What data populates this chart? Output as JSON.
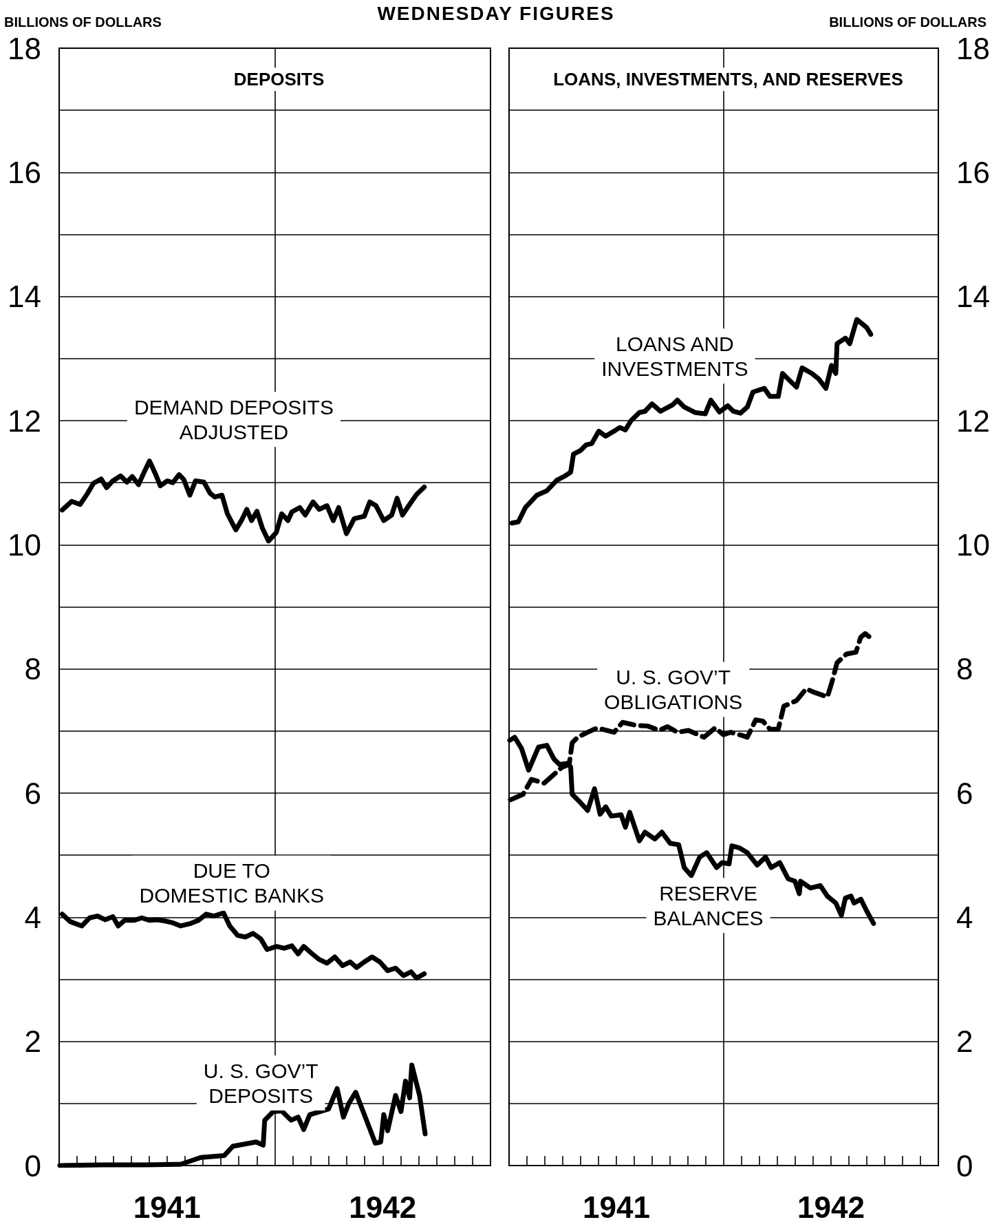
{
  "chart_data": [
    {
      "type": "line",
      "title": "DEPOSITS",
      "ylabel": "BILLIONS OF DOLLARS",
      "annotations": [
        "WEDNESDAY FIGURES"
      ],
      "xlim": [
        1941,
        1943
      ],
      "xticks": [
        {
          "value": 1941.083,
          "label": null
        },
        {
          "value": 1941.167,
          "label": null
        },
        {
          "value": 1941.25,
          "label": null
        },
        {
          "value": 1941.333,
          "label": null
        },
        {
          "value": 1941.417,
          "label": null
        },
        {
          "value": 1941.5,
          "label": "1941"
        },
        {
          "value": 1941.583,
          "label": null
        },
        {
          "value": 1941.667,
          "label": null
        },
        {
          "value": 1941.75,
          "label": null
        },
        {
          "value": 1941.833,
          "label": null
        },
        {
          "value": 1941.917,
          "label": null
        },
        {
          "value": 1942.083,
          "label": null
        },
        {
          "value": 1942.167,
          "label": null
        },
        {
          "value": 1942.25,
          "label": null
        },
        {
          "value": 1942.333,
          "label": null
        },
        {
          "value": 1942.417,
          "label": null
        },
        {
          "value": 1942.5,
          "label": "1942"
        },
        {
          "value": 1942.583,
          "label": null
        },
        {
          "value": 1942.667,
          "label": null
        },
        {
          "value": 1942.75,
          "label": null
        },
        {
          "value": 1942.833,
          "label": null
        },
        {
          "value": 1942.917,
          "label": null
        }
      ],
      "ylim": [
        0,
        18
      ],
      "yticks": [
        0,
        {
          "value": 1,
          "label": null
        },
        2,
        {
          "value": 3,
          "label": null
        },
        4,
        {
          "value": 5,
          "label": null
        },
        6,
        {
          "value": 7,
          "label": null
        },
        8,
        {
          "value": 9,
          "label": null
        },
        10,
        {
          "value": 11,
          "label": null
        },
        12,
        {
          "value": 13,
          "label": null
        },
        14,
        {
          "value": 15,
          "label": null
        },
        16,
        {
          "value": 17,
          "label": null
        },
        18
      ],
      "grid": "y",
      "legend": false,
      "marker": "none",
      "ref_lines": [
        {
          "axis": "x",
          "value": 1942,
          "label": null,
          "color": "#000000"
        }
      ],
      "series": [
        {
          "name": "DEMAND DEPOSITS ADJUSTED",
          "color": "#000000",
          "line_style": "solid",
          "x": [
            1941.014,
            1941.058,
            1941.097,
            1941.13,
            1941.159,
            1941.195,
            1941.22,
            1941.249,
            1941.285,
            1941.314,
            1941.339,
            1941.368,
            1941.394,
            1941.419,
            1941.448,
            1941.469,
            1941.502,
            1941.527,
            1941.556,
            1941.578,
            1941.606,
            1941.632,
            1941.671,
            1941.7,
            1941.722,
            1941.755,
            1941.78,
            1941.819,
            1941.845,
            1941.87,
            1941.892,
            1941.917,
            1941.942,
            1941.971,
            1942.007,
            1942.032,
            1942.061,
            1942.079,
            1942.116,
            1942.141,
            1942.177,
            1942.206,
            1942.242,
            1942.271,
            1942.296,
            1942.332,
            1942.368,
            1942.415,
            1942.44,
            1942.469,
            1942.505,
            1942.542,
            1942.567,
            1942.592,
            1942.621,
            1942.657,
            1942.693
          ],
          "values": [
            10.56,
            10.7,
            10.65,
            10.82,
            10.99,
            11.06,
            10.92,
            11.03,
            11.11,
            11.01,
            11.1,
            10.97,
            11.17,
            11.35,
            11.13,
            10.95,
            11.03,
            11.0,
            11.13,
            11.05,
            10.8,
            11.03,
            11.01,
            10.83,
            10.77,
            10.8,
            10.5,
            10.24,
            10.39,
            10.57,
            10.39,
            10.54,
            10.27,
            10.06,
            10.2,
            10.5,
            10.39,
            10.53,
            10.6,
            10.48,
            10.69,
            10.57,
            10.63,
            10.39,
            10.6,
            10.18,
            10.42,
            10.46,
            10.69,
            10.63,
            10.39,
            10.48,
            10.75,
            10.48,
            10.63,
            10.81,
            10.93
          ]
        },
        {
          "name": "DUE TO DOMESTIC BANKS",
          "color": "#000000",
          "line_style": "solid",
          "x": [
            1941.014,
            1941.051,
            1941.105,
            1941.141,
            1941.177,
            1941.213,
            1941.249,
            1941.274,
            1941.303,
            1941.347,
            1941.383,
            1941.419,
            1941.455,
            1941.491,
            1941.527,
            1941.563,
            1941.61,
            1941.646,
            1941.682,
            1941.718,
            1941.762,
            1941.791,
            1941.827,
            1941.863,
            1941.899,
            1941.935,
            1941.964,
            1942.007,
            1942.043,
            1942.079,
            1942.108,
            1942.134,
            1942.17,
            1942.206,
            1942.242,
            1942.278,
            1942.314,
            1942.35,
            1942.379,
            1942.415,
            1942.451,
            1942.487,
            1942.523,
            1942.56,
            1942.596,
            1942.632,
            1942.657,
            1942.693
          ],
          "values": [
            4.05,
            3.93,
            3.86,
            3.99,
            4.02,
            3.96,
            4.01,
            3.86,
            3.95,
            3.95,
            3.99,
            3.95,
            3.96,
            3.94,
            3.91,
            3.86,
            3.9,
            3.95,
            4.05,
            4.02,
            4.07,
            3.86,
            3.71,
            3.68,
            3.74,
            3.65,
            3.48,
            3.53,
            3.5,
            3.54,
            3.41,
            3.53,
            3.42,
            3.32,
            3.26,
            3.36,
            3.22,
            3.28,
            3.19,
            3.28,
            3.36,
            3.28,
            3.14,
            3.18,
            3.06,
            3.12,
            3.02,
            3.09
          ]
        },
        {
          "name": "U. S. GOV’T DEPOSITS",
          "color": "#000000",
          "line_style": "solid",
          "x": [
            1941.003,
            1941.2,
            1941.4,
            1941.563,
            1941.657,
            1941.765,
            1941.805,
            1941.913,
            1941.946,
            1941.953,
            1941.993,
            1942.032,
            1942.076,
            1942.108,
            1942.134,
            1942.162,
            1942.249,
            1942.289,
            1942.318,
            1942.343,
            1942.375,
            1942.466,
            1942.491,
            1942.505,
            1942.523,
            1942.56,
            1942.585,
            1942.606,
            1942.625,
            1942.635,
            1942.671,
            1942.697
          ],
          "values": [
            0.0,
            0.01,
            0.01,
            0.02,
            0.13,
            0.16,
            0.31,
            0.38,
            0.33,
            0.73,
            0.87,
            0.88,
            0.73,
            0.78,
            0.58,
            0.82,
            0.91,
            1.24,
            0.78,
            1.0,
            1.18,
            0.36,
            0.38,
            0.82,
            0.56,
            1.13,
            0.87,
            1.36,
            1.09,
            1.62,
            1.13,
            0.51
          ]
        }
      ]
    },
    {
      "type": "line",
      "title": "LOANS, INVESTMENTS, AND RESERVES",
      "ylabel": "BILLIONS OF DOLLARS",
      "xlim": [
        1941,
        1943
      ],
      "xticks": [
        {
          "value": 1941.083,
          "label": null
        },
        {
          "value": 1941.167,
          "label": null
        },
        {
          "value": 1941.25,
          "label": null
        },
        {
          "value": 1941.333,
          "label": null
        },
        {
          "value": 1941.417,
          "label": null
        },
        {
          "value": 1941.5,
          "label": "1941"
        },
        {
          "value": 1941.583,
          "label": null
        },
        {
          "value": 1941.667,
          "label": null
        },
        {
          "value": 1941.75,
          "label": null
        },
        {
          "value": 1941.833,
          "label": null
        },
        {
          "value": 1941.917,
          "label": null
        },
        {
          "value": 1942.083,
          "label": null
        },
        {
          "value": 1942.167,
          "label": null
        },
        {
          "value": 1942.25,
          "label": null
        },
        {
          "value": 1942.333,
          "label": null
        },
        {
          "value": 1942.417,
          "label": null
        },
        {
          "value": 1942.5,
          "label": "1942"
        },
        {
          "value": 1942.583,
          "label": null
        },
        {
          "value": 1942.667,
          "label": null
        },
        {
          "value": 1942.75,
          "label": null
        },
        {
          "value": 1942.833,
          "label": null
        },
        {
          "value": 1942.917,
          "label": null
        }
      ],
      "ylim": [
        0,
        18
      ],
      "yticks": [
        0,
        {
          "value": 1,
          "label": null
        },
        2,
        {
          "value": 3,
          "label": null
        },
        4,
        {
          "value": 5,
          "label": null
        },
        6,
        {
          "value": 7,
          "label": null
        },
        8,
        {
          "value": 9,
          "label": null
        },
        10,
        {
          "value": 11,
          "label": null
        },
        12,
        {
          "value": 13,
          "label": null
        },
        14,
        {
          "value": 15,
          "label": null
        },
        16,
        {
          "value": 17,
          "label": null
        },
        18
      ],
      "grid": "y",
      "legend": false,
      "marker": "none",
      "ref_lines": [
        {
          "axis": "x",
          "value": 1942,
          "label": null,
          "color": "#000000"
        }
      ],
      "series": [
        {
          "name": "LOANS AND INVESTMENTS",
          "color": "#000000",
          "line_style": "solid",
          "x": [
            1941.014,
            1941.043,
            1941.076,
            1941.13,
            1941.176,
            1941.222,
            1941.261,
            1941.287,
            1941.3,
            1941.333,
            1941.359,
            1941.385,
            1941.418,
            1941.45,
            1941.489,
            1941.516,
            1941.542,
            1941.568,
            1941.607,
            1941.633,
            1941.666,
            1941.705,
            1941.764,
            1941.784,
            1941.816,
            1941.868,
            1941.914,
            1941.94,
            1941.98,
            1942.019,
            1942.045,
            1942.078,
            1942.11,
            1942.136,
            1942.189,
            1942.215,
            1942.254,
            1942.274,
            1942.306,
            1942.339,
            1942.365,
            1942.411,
            1942.443,
            1942.476,
            1942.502,
            1942.522,
            1942.528,
            1942.567,
            1942.587,
            1942.62,
            1942.666,
            1942.685
          ],
          "values": [
            10.35,
            10.37,
            10.6,
            10.8,
            10.87,
            11.04,
            11.11,
            11.17,
            11.46,
            11.52,
            11.61,
            11.63,
            11.83,
            11.75,
            11.83,
            11.89,
            11.85,
            12.0,
            12.13,
            12.15,
            12.27,
            12.15,
            12.26,
            12.33,
            12.22,
            12.13,
            12.11,
            12.33,
            12.14,
            12.24,
            12.15,
            12.12,
            12.22,
            12.46,
            12.52,
            12.39,
            12.39,
            12.76,
            12.65,
            12.54,
            12.85,
            12.76,
            12.67,
            12.52,
            12.89,
            12.76,
            13.24,
            13.33,
            13.24,
            13.63,
            13.5,
            13.39
          ]
        },
        {
          "name": "U. S. GOV’T OBLIGATIONS",
          "color": "#000000",
          "line_style": "dashed",
          "x": [
            1941.006,
            1941.065,
            1941.104,
            1941.163,
            1941.248,
            1941.28,
            1941.294,
            1941.32,
            1941.366,
            1941.411,
            1941.489,
            1941.529,
            1941.594,
            1941.646,
            1941.699,
            1941.738,
            1941.784,
            1941.836,
            1941.908,
            1941.96,
            1941.999,
            1942.032,
            1942.084,
            1942.11,
            1942.149,
            1942.182,
            1942.215,
            1942.254,
            1942.28,
            1942.339,
            1942.384,
            1942.424,
            1942.483,
            1942.505,
            1942.528,
            1942.572,
            1942.616,
            1942.638,
            1942.659,
            1942.688
          ],
          "values": [
            5.89,
            5.98,
            6.22,
            6.16,
            6.42,
            6.46,
            6.81,
            6.9,
            6.98,
            7.05,
            6.98,
            7.14,
            7.09,
            7.08,
            7.01,
            7.07,
            6.98,
            7.01,
            6.9,
            7.05,
            6.94,
            6.98,
            6.93,
            6.9,
            7.18,
            7.16,
            7.03,
            7.03,
            7.4,
            7.49,
            7.68,
            7.62,
            7.55,
            7.8,
            8.1,
            8.24,
            8.27,
            8.51,
            8.57,
            8.49
          ]
        },
        {
          "name": "RESERVE BALANCES",
          "color": "#000000",
          "line_style": "solid",
          "x": [
            1941.003,
            1941.026,
            1941.058,
            1941.091,
            1941.137,
            1941.176,
            1941.209,
            1941.235,
            1941.274,
            1941.287,
            1941.294,
            1941.326,
            1941.366,
            1941.398,
            1941.424,
            1941.45,
            1941.476,
            1941.522,
            1941.542,
            1941.562,
            1941.607,
            1941.633,
            1941.679,
            1941.712,
            1941.751,
            1941.79,
            1941.816,
            1941.849,
            1941.888,
            1941.921,
            1941.967,
            1941.993,
            1942.025,
            1942.038,
            1942.071,
            1942.11,
            1942.156,
            1942.195,
            1942.221,
            1942.261,
            1942.3,
            1942.332,
            1942.352,
            1942.358,
            1942.404,
            1942.45,
            1942.483,
            1942.522,
            1942.548,
            1942.567,
            1942.593,
            1942.607,
            1942.639,
            1942.666,
            1942.698
          ],
          "values": [
            6.85,
            6.9,
            6.72,
            6.37,
            6.74,
            6.77,
            6.55,
            6.46,
            6.48,
            6.42,
            5.98,
            5.87,
            5.72,
            6.07,
            5.66,
            5.78,
            5.63,
            5.65,
            5.45,
            5.69,
            5.23,
            5.37,
            5.26,
            5.37,
            5.19,
            5.17,
            4.8,
            4.67,
            4.97,
            5.04,
            4.8,
            4.88,
            4.86,
            5.15,
            5.12,
            5.04,
            4.84,
            4.97,
            4.8,
            4.88,
            4.62,
            4.58,
            4.38,
            4.58,
            4.47,
            4.51,
            4.34,
            4.23,
            4.03,
            4.31,
            4.34,
            4.23,
            4.29,
            4.1,
            3.9
          ]
        }
      ]
    }
  ]
}
